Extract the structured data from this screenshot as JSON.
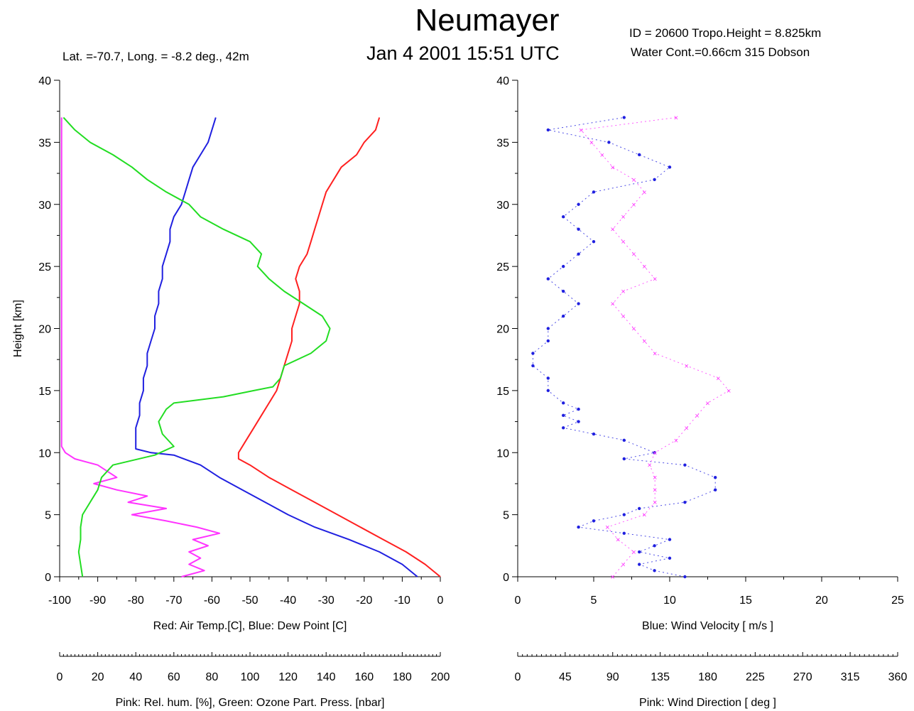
{
  "header": {
    "title": "Neumayer",
    "subtitle": "Jan  4 2001 15:51 UTC",
    "station_info": "Lat. =-70.7,   Long. =  -8.2  deg.,   42m",
    "id_info": "ID = 20600     Tropo.Height =  8.825km",
    "water_info": "Water Cont.=0.66cm           315  Dobson"
  },
  "colors": {
    "red": "#ff2020",
    "blue": "#2020e0",
    "green": "#22dd22",
    "pink": "#ff33ff",
    "axis": "#000000"
  },
  "chart_data": [
    {
      "type": "line",
      "ylabel": "Height [km]",
      "ylim": [
        0,
        40
      ],
      "yticks": [
        "0",
        "5",
        "10",
        "15",
        "20",
        "25",
        "30",
        "35",
        "40"
      ],
      "x_axis_main": {
        "label": "Red: Air Temp.[C],     Blue: Dew Point [C]",
        "lim": [
          -100,
          0
        ],
        "ticks": [
          "-100",
          "-90",
          "-80",
          "-70",
          "-60",
          "-50",
          "-40",
          "-30",
          "-20",
          "-10",
          "0"
        ]
      },
      "x_axis_secondary": {
        "label": "Pink: Rel. hum. [%],     Green: Ozone Part. Press. [nbar]",
        "lim": [
          0,
          200
        ],
        "ticks": [
          "0",
          "20",
          "40",
          "60",
          "80",
          "100",
          "120",
          "140",
          "160",
          "180",
          "200"
        ]
      },
      "series": [
        {
          "name": "Red: Air Temp.[C]",
          "color": "red",
          "axis": "main",
          "points": [
            [
              0,
              0
            ],
            [
              -4,
              1
            ],
            [
              -9,
              2
            ],
            [
              -15,
              3
            ],
            [
              -21,
              4
            ],
            [
              -27,
              5
            ],
            [
              -33,
              6
            ],
            [
              -39,
              7
            ],
            [
              -45,
              8
            ],
            [
              -50,
              9
            ],
            [
              -53,
              9.5
            ],
            [
              -53,
              10
            ],
            [
              -51,
              11
            ],
            [
              -49,
              12
            ],
            [
              -47,
              13
            ],
            [
              -45,
              14
            ],
            [
              -43,
              15
            ],
            [
              -42,
              16
            ],
            [
              -41,
              17
            ],
            [
              -40,
              18
            ],
            [
              -39,
              19
            ],
            [
              -39,
              20
            ],
            [
              -38,
              21
            ],
            [
              -37,
              22
            ],
            [
              -37,
              23
            ],
            [
              -38,
              24
            ],
            [
              -37,
              25
            ],
            [
              -35,
              26
            ],
            [
              -34,
              27
            ],
            [
              -33,
              28
            ],
            [
              -32,
              29
            ],
            [
              -31,
              30
            ],
            [
              -30,
              31
            ],
            [
              -28,
              32
            ],
            [
              -26,
              33
            ],
            [
              -22,
              34
            ],
            [
              -20,
              35
            ],
            [
              -17,
              36
            ],
            [
              -16,
              37
            ]
          ]
        },
        {
          "name": "Blue: Dew Point [C]",
          "color": "blue",
          "axis": "main",
          "points": [
            [
              -6,
              0
            ],
            [
              -10,
              1
            ],
            [
              -16,
              2
            ],
            [
              -24,
              3
            ],
            [
              -33,
              4
            ],
            [
              -40,
              5
            ],
            [
              -46,
              6
            ],
            [
              -52,
              7
            ],
            [
              -58,
              8
            ],
            [
              -63,
              9
            ],
            [
              -70,
              9.8
            ],
            [
              -76,
              10
            ],
            [
              -80,
              10.3
            ],
            [
              -80,
              11
            ],
            [
              -80,
              12
            ],
            [
              -79,
              13
            ],
            [
              -79,
              14
            ],
            [
              -78,
              15
            ],
            [
              -78,
              16
            ],
            [
              -77,
              17
            ],
            [
              -77,
              18
            ],
            [
              -76,
              19
            ],
            [
              -75,
              20
            ],
            [
              -75,
              21
            ],
            [
              -74,
              22
            ],
            [
              -74,
              23
            ],
            [
              -73,
              24
            ],
            [
              -73,
              25
            ],
            [
              -72,
              26
            ],
            [
              -71,
              27
            ],
            [
              -71,
              28
            ],
            [
              -70,
              29
            ],
            [
              -68,
              30
            ],
            [
              -67,
              31
            ],
            [
              -66,
              32
            ],
            [
              -65,
              33
            ],
            [
              -63,
              34
            ],
            [
              -61,
              35
            ],
            [
              -60,
              36
            ],
            [
              -59,
              37
            ]
          ]
        },
        {
          "name": "Pink: Rel. hum. [%]",
          "color": "pink",
          "axis": "secondary",
          "points": [
            [
              64,
              0
            ],
            [
              76,
              0.5
            ],
            [
              68,
              1
            ],
            [
              74,
              1.5
            ],
            [
              68,
              2
            ],
            [
              78,
              2.5
            ],
            [
              70,
              3
            ],
            [
              84,
              3.5
            ],
            [
              72,
              4
            ],
            [
              56,
              4.5
            ],
            [
              38,
              5
            ],
            [
              56,
              5.5
            ],
            [
              36,
              6
            ],
            [
              46,
              6.5
            ],
            [
              30,
              7
            ],
            [
              18,
              7.5
            ],
            [
              30,
              8
            ],
            [
              20,
              9
            ],
            [
              8,
              9.5
            ],
            [
              3,
              10
            ],
            [
              1,
              10.5
            ],
            [
              1,
              12
            ],
            [
              1,
              20
            ],
            [
              1,
              30
            ],
            [
              1,
              37
            ]
          ]
        },
        {
          "name": "Green: Ozone Part. Press. [nbar]",
          "color": "green",
          "axis": "secondary",
          "points": [
            [
              12,
              0
            ],
            [
              11,
              1
            ],
            [
              10,
              2
            ],
            [
              11,
              3
            ],
            [
              11,
              4
            ],
            [
              12,
              5
            ],
            [
              16,
              6
            ],
            [
              20,
              7
            ],
            [
              22,
              8
            ],
            [
              28,
              9
            ],
            [
              50,
              9.8
            ],
            [
              60,
              10.5
            ],
            [
              54,
              11.5
            ],
            [
              52,
              12.5
            ],
            [
              56,
              13.5
            ],
            [
              60,
              14
            ],
            [
              86,
              14.5
            ],
            [
              102,
              15
            ],
            [
              112,
              15.3
            ],
            [
              116,
              16
            ],
            [
              118,
              17
            ],
            [
              132,
              18
            ],
            [
              140,
              19
            ],
            [
              142,
              20
            ],
            [
              138,
              21
            ],
            [
              128,
              22
            ],
            [
              118,
              23
            ],
            [
              110,
              24
            ],
            [
              104,
              25
            ],
            [
              106,
              26
            ],
            [
              100,
              27
            ],
            [
              86,
              28
            ],
            [
              74,
              29
            ],
            [
              68,
              30
            ],
            [
              56,
              31
            ],
            [
              46,
              32
            ],
            [
              38,
              33
            ],
            [
              28,
              34
            ],
            [
              16,
              35
            ],
            [
              8,
              36
            ],
            [
              2,
              37
            ]
          ]
        }
      ]
    },
    {
      "type": "scatter",
      "ylim": [
        0,
        40
      ],
      "yticks": [
        "0",
        "5",
        "10",
        "15",
        "20",
        "25",
        "30",
        "35",
        "40"
      ],
      "x_axis_main": {
        "label": "Blue: Wind Velocity [ m/s ]",
        "lim": [
          0,
          25
        ],
        "ticks": [
          "0",
          "5",
          "10",
          "15",
          "20",
          "25"
        ]
      },
      "x_axis_secondary": {
        "label": "Pink: Wind Direction [ deg ]",
        "lim": [
          0,
          360
        ],
        "ticks": [
          "0",
          "45",
          "90",
          "135",
          "180",
          "225",
          "270",
          "315",
          "360"
        ]
      },
      "series": [
        {
          "name": "Blue: Wind Velocity [ m/s ]",
          "color": "blue",
          "axis": "main",
          "points": [
            [
              11,
              0
            ],
            [
              9,
              0.5
            ],
            [
              8,
              1
            ],
            [
              10,
              1.5
            ],
            [
              8,
              2
            ],
            [
              9,
              2.5
            ],
            [
              10,
              3
            ],
            [
              7,
              3.5
            ],
            [
              4,
              4
            ],
            [
              5,
              4.5
            ],
            [
              7,
              5
            ],
            [
              8,
              5.5
            ],
            [
              11,
              6
            ],
            [
              13,
              7
            ],
            [
              13,
              8
            ],
            [
              11,
              9
            ],
            [
              7,
              9.5
            ],
            [
              9,
              10
            ],
            [
              7,
              11
            ],
            [
              5,
              11.5
            ],
            [
              3,
              12
            ],
            [
              4,
              12.5
            ],
            [
              3,
              13
            ],
            [
              4,
              13.5
            ],
            [
              3,
              14
            ],
            [
              2,
              15
            ],
            [
              2,
              16
            ],
            [
              1,
              17
            ],
            [
              1,
              18
            ],
            [
              2,
              19
            ],
            [
              2,
              20
            ],
            [
              3,
              21
            ],
            [
              4,
              22
            ],
            [
              3,
              23
            ],
            [
              2,
              24
            ],
            [
              3,
              25
            ],
            [
              4,
              26
            ],
            [
              5,
              27
            ],
            [
              4,
              28
            ],
            [
              3,
              29
            ],
            [
              4,
              30
            ],
            [
              5,
              31
            ],
            [
              9,
              32
            ],
            [
              10,
              33
            ],
            [
              8,
              34
            ],
            [
              6,
              35
            ],
            [
              2,
              36
            ],
            [
              7,
              37
            ]
          ]
        },
        {
          "name": "Pink: Wind Direction [ deg ]",
          "color": "pink",
          "axis": "secondary",
          "points": [
            [
              90,
              0
            ],
            [
              100,
              1
            ],
            [
              110,
              2
            ],
            [
              95,
              3
            ],
            [
              85,
              4
            ],
            [
              120,
              5
            ],
            [
              130,
              6
            ],
            [
              130,
              7
            ],
            [
              130,
              8
            ],
            [
              125,
              9
            ],
            [
              130,
              10
            ],
            [
              150,
              11
            ],
            [
              160,
              12
            ],
            [
              170,
              13
            ],
            [
              180,
              14
            ],
            [
              200,
              15
            ],
            [
              190,
              16
            ],
            [
              160,
              17
            ],
            [
              130,
              18
            ],
            [
              120,
              19
            ],
            [
              110,
              20
            ],
            [
              100,
              21
            ],
            [
              90,
              22
            ],
            [
              100,
              23
            ],
            [
              130,
              24
            ],
            [
              120,
              25
            ],
            [
              110,
              26
            ],
            [
              100,
              27
            ],
            [
              90,
              28
            ],
            [
              100,
              29
            ],
            [
              110,
              30
            ],
            [
              120,
              31
            ],
            [
              110,
              32
            ],
            [
              90,
              33
            ],
            [
              80,
              34
            ],
            [
              70,
              35
            ],
            [
              60,
              36
            ],
            [
              150,
              37
            ]
          ]
        }
      ]
    }
  ]
}
